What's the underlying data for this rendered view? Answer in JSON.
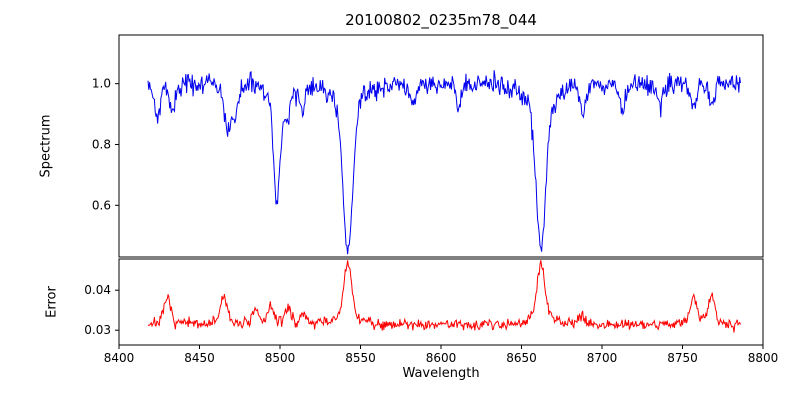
{
  "title": "20100802_0235m78_044",
  "axes": {
    "xlabel": "Wavelength",
    "xlim": [
      8400,
      8800
    ],
    "x_ticks": [
      {
        "v": 8400,
        "label": "8400"
      },
      {
        "v": 8450,
        "label": "8450"
      },
      {
        "v": 8500,
        "label": "8500"
      },
      {
        "v": 8550,
        "label": "8550"
      },
      {
        "v": 8600,
        "label": "8600"
      },
      {
        "v": 8650,
        "label": "8650"
      },
      {
        "v": 8700,
        "label": "8700"
      },
      {
        "v": 8750,
        "label": "8750"
      },
      {
        "v": 8800,
        "label": "8800"
      }
    ],
    "top_panel": {
      "ylabel": "Spectrum",
      "ylim": [
        0.43,
        1.16
      ],
      "y_ticks": [
        {
          "v": 0.6,
          "label": "0.6"
        },
        {
          "v": 0.8,
          "label": "0.8"
        },
        {
          "v": 1.0,
          "label": "1.0"
        }
      ]
    },
    "bottom_panel": {
      "ylabel": "Error",
      "ylim": [
        0.0263,
        0.0478
      ],
      "y_ticks": [
        {
          "v": 0.03,
          "label": "0.03"
        },
        {
          "v": 0.04,
          "label": "0.04"
        }
      ]
    }
  },
  "chart_data": [
    {
      "type": "line",
      "name": "spectrum",
      "panel": "top",
      "color": "#0000ee",
      "x_start": 8418,
      "x_end": 8786,
      "x_step": 0.5,
      "continuum": 1.0,
      "noise_sigma": 0.017,
      "seed": 42,
      "absorption_lines": [
        {
          "center": 8498.0,
          "min_flux": 0.61,
          "width": 2.0
        },
        {
          "center": 8542.1,
          "min_flux": 0.45,
          "width": 3.0
        },
        {
          "center": 8662.1,
          "min_flux": 0.46,
          "width": 3.0
        },
        {
          "center": 8424.0,
          "min_flux": 0.89,
          "width": 1.5
        },
        {
          "center": 8433.0,
          "min_flux": 0.91,
          "width": 1.5
        },
        {
          "center": 8467.5,
          "min_flux": 0.85,
          "width": 1.8
        },
        {
          "center": 8472.0,
          "min_flux": 0.9,
          "width": 1.5
        },
        {
          "center": 8504.5,
          "min_flux": 0.9,
          "width": 1.5
        },
        {
          "center": 8514.0,
          "min_flux": 0.92,
          "width": 1.5
        },
        {
          "center": 8583.0,
          "min_flux": 0.93,
          "width": 1.5
        },
        {
          "center": 8611.0,
          "min_flux": 0.93,
          "width": 1.5
        },
        {
          "center": 8688.0,
          "min_flux": 0.9,
          "width": 1.5
        },
        {
          "center": 8713.0,
          "min_flux": 0.91,
          "width": 1.5
        },
        {
          "center": 8736.0,
          "min_flux": 0.93,
          "width": 1.5
        },
        {
          "center": 8757.0,
          "min_flux": 0.92,
          "width": 1.5
        },
        {
          "center": 8768.0,
          "min_flux": 0.93,
          "width": 1.5
        }
      ]
    },
    {
      "type": "line",
      "name": "error",
      "panel": "bottom",
      "color": "#ff0000",
      "x_start": 8418,
      "x_end": 8786,
      "x_step": 0.5,
      "baseline": 0.0315,
      "noise_sigma": 0.0007,
      "seed": 7,
      "peaks": [
        {
          "center": 8430.0,
          "height": 0.0065,
          "width": 1.8
        },
        {
          "center": 8465.0,
          "height": 0.0072,
          "width": 1.8
        },
        {
          "center": 8485.0,
          "height": 0.003,
          "width": 1.8
        },
        {
          "center": 8494.0,
          "height": 0.0042,
          "width": 1.8
        },
        {
          "center": 8505.0,
          "height": 0.004,
          "width": 1.8
        },
        {
          "center": 8515.0,
          "height": 0.0022,
          "width": 1.8
        },
        {
          "center": 8542.1,
          "height": 0.0148,
          "width": 2.5
        },
        {
          "center": 8662.1,
          "height": 0.0147,
          "width": 2.5
        },
        {
          "center": 8688.0,
          "height": 0.0018,
          "width": 1.8
        },
        {
          "center": 8757.0,
          "height": 0.0068,
          "width": 1.8
        },
        {
          "center": 8768.0,
          "height": 0.0072,
          "width": 1.8
        }
      ]
    }
  ]
}
